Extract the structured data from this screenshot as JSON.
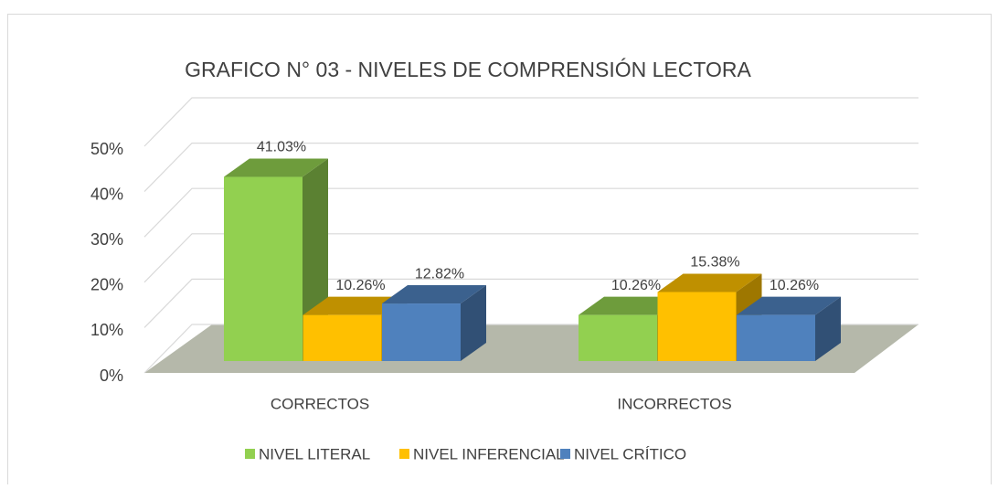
{
  "chart_data": {
    "type": "bar3d",
    "title": "GRAFICO N° 03 - NIVELES DE COMPRENSIÓN LECTORA",
    "categories": [
      "CORRECTOS",
      "INCORRECTOS"
    ],
    "series": [
      {
        "name": "NIVEL LITERAL",
        "color": "#92d050",
        "values": [
          41.03,
          10.26
        ],
        "value_labels": [
          "41.03%",
          "10.26%"
        ]
      },
      {
        "name": "NIVEL INFERENCIAL",
        "color": "#ffc000",
        "values": [
          10.26,
          15.38
        ],
        "value_labels": [
          "10.26%",
          "15.38%"
        ]
      },
      {
        "name": "NIVEL CRÍTICO",
        "color": "#4f81bd",
        "values": [
          12.82,
          10.26
        ],
        "value_labels": [
          "12.82%",
          "10.26%"
        ]
      }
    ],
    "ylim": [
      0,
      50
    ],
    "yticks": [
      {
        "value": 0,
        "label": "0%"
      },
      {
        "value": 10,
        "label": "10%"
      },
      {
        "value": 20,
        "label": "20%"
      },
      {
        "value": 30,
        "label": "30%"
      },
      {
        "value": 40,
        "label": "40%"
      },
      {
        "value": 50,
        "label": "50%"
      }
    ],
    "grid": true,
    "legend": "bottom"
  }
}
